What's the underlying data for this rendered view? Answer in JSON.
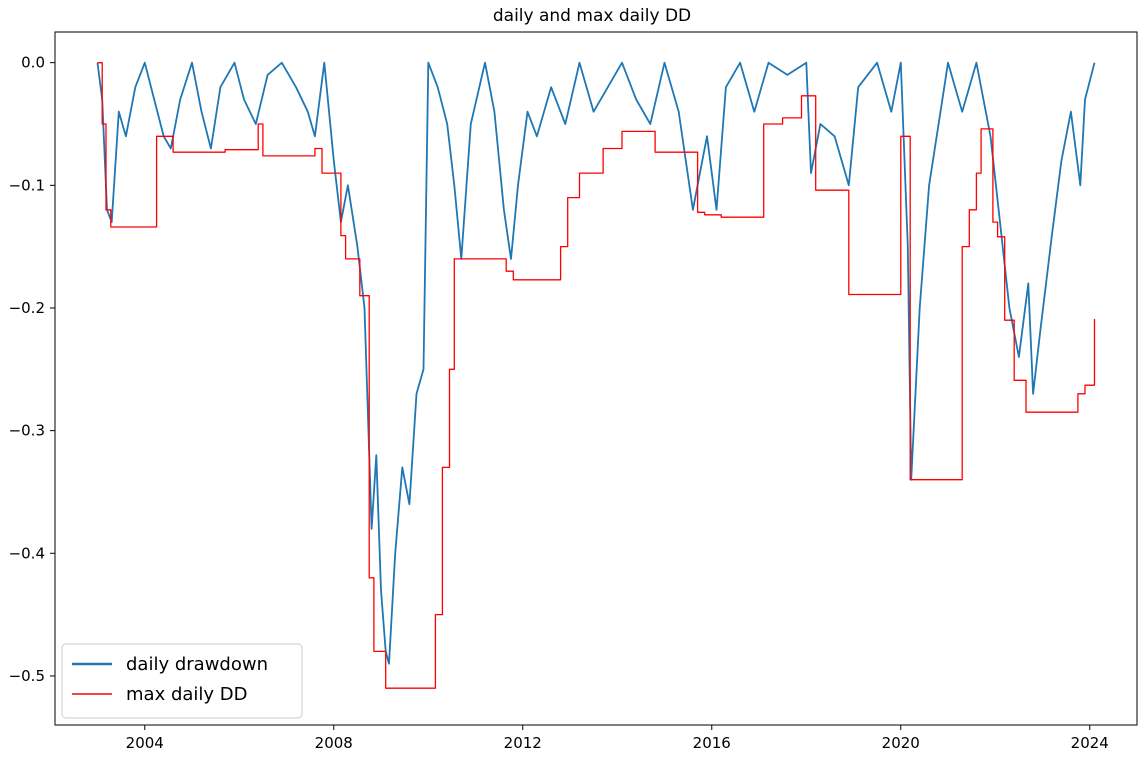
{
  "chart_data": {
    "type": "line",
    "title": "daily and max daily DD",
    "xlabel": "",
    "ylabel": "",
    "xlim": [
      2002.1,
      2025.0
    ],
    "ylim": [
      -0.54,
      0.025
    ],
    "x_ticks": [
      {
        "value": 2004,
        "label": "2004"
      },
      {
        "value": 2008,
        "label": "2008"
      },
      {
        "value": 2012,
        "label": "2012"
      },
      {
        "value": 2016,
        "label": "2016"
      },
      {
        "value": 2020,
        "label": "2020"
      },
      {
        "value": 2024,
        "label": "2024"
      }
    ],
    "y_ticks": [
      {
        "value": 0.0,
        "label": "0.0"
      },
      {
        "value": -0.1,
        "label": "−0.1"
      },
      {
        "value": -0.2,
        "label": "−0.2"
      },
      {
        "value": -0.3,
        "label": "−0.3"
      },
      {
        "value": -0.4,
        "label": "−0.4"
      },
      {
        "value": -0.5,
        "label": "−0.5"
      }
    ],
    "grid": false,
    "legend_position": "lower-left",
    "series": [
      {
        "name": "daily drawdown",
        "color": "#1f77b4",
        "style": "line",
        "points": [
          [
            2003.0,
            0.0
          ],
          [
            2003.1,
            -0.03
          ],
          [
            2003.2,
            -0.12
          ],
          [
            2003.3,
            -0.13
          ],
          [
            2003.45,
            -0.04
          ],
          [
            2003.6,
            -0.06
          ],
          [
            2003.8,
            -0.02
          ],
          [
            2004.0,
            0.0
          ],
          [
            2004.2,
            -0.03
          ],
          [
            2004.4,
            -0.06
          ],
          [
            2004.55,
            -0.07
          ],
          [
            2004.75,
            -0.03
          ],
          [
            2005.0,
            0.0
          ],
          [
            2005.2,
            -0.04
          ],
          [
            2005.4,
            -0.07
          ],
          [
            2005.6,
            -0.02
          ],
          [
            2005.9,
            0.0
          ],
          [
            2006.1,
            -0.03
          ],
          [
            2006.35,
            -0.05
          ],
          [
            2006.6,
            -0.01
          ],
          [
            2006.9,
            0.0
          ],
          [
            2007.2,
            -0.02
          ],
          [
            2007.45,
            -0.04
          ],
          [
            2007.6,
            -0.06
          ],
          [
            2007.8,
            0.0
          ],
          [
            2008.0,
            -0.08
          ],
          [
            2008.15,
            -0.13
          ],
          [
            2008.3,
            -0.1
          ],
          [
            2008.5,
            -0.15
          ],
          [
            2008.65,
            -0.2
          ],
          [
            2008.8,
            -0.38
          ],
          [
            2008.9,
            -0.32
          ],
          [
            2009.0,
            -0.43
          ],
          [
            2009.1,
            -0.48
          ],
          [
            2009.17,
            -0.49
          ],
          [
            2009.3,
            -0.4
          ],
          [
            2009.45,
            -0.33
          ],
          [
            2009.6,
            -0.36
          ],
          [
            2009.75,
            -0.27
          ],
          [
            2009.9,
            -0.25
          ],
          [
            2010.0,
            0.0
          ],
          [
            2010.2,
            -0.02
          ],
          [
            2010.4,
            -0.05
          ],
          [
            2010.55,
            -0.1
          ],
          [
            2010.7,
            -0.16
          ],
          [
            2010.9,
            -0.05
          ],
          [
            2011.2,
            0.0
          ],
          [
            2011.4,
            -0.04
          ],
          [
            2011.6,
            -0.12
          ],
          [
            2011.75,
            -0.16
          ],
          [
            2011.9,
            -0.1
          ],
          [
            2012.1,
            -0.04
          ],
          [
            2012.3,
            -0.06
          ],
          [
            2012.6,
            -0.02
          ],
          [
            2012.9,
            -0.05
          ],
          [
            2013.2,
            0.0
          ],
          [
            2013.5,
            -0.04
          ],
          [
            2013.8,
            -0.02
          ],
          [
            2014.1,
            0.0
          ],
          [
            2014.4,
            -0.03
          ],
          [
            2014.7,
            -0.05
          ],
          [
            2015.0,
            0.0
          ],
          [
            2015.3,
            -0.04
          ],
          [
            2015.6,
            -0.12
          ],
          [
            2015.75,
            -0.09
          ],
          [
            2015.9,
            -0.06
          ],
          [
            2016.1,
            -0.12
          ],
          [
            2016.3,
            -0.02
          ],
          [
            2016.6,
            0.0
          ],
          [
            2016.9,
            -0.04
          ],
          [
            2017.2,
            0.0
          ],
          [
            2017.6,
            -0.01
          ],
          [
            2018.0,
            0.0
          ],
          [
            2018.1,
            -0.09
          ],
          [
            2018.3,
            -0.05
          ],
          [
            2018.6,
            -0.06
          ],
          [
            2018.9,
            -0.1
          ],
          [
            2019.1,
            -0.02
          ],
          [
            2019.5,
            0.0
          ],
          [
            2019.8,
            -0.04
          ],
          [
            2020.0,
            0.0
          ],
          [
            2020.15,
            -0.15
          ],
          [
            2020.22,
            -0.34
          ],
          [
            2020.4,
            -0.2
          ],
          [
            2020.6,
            -0.1
          ],
          [
            2020.8,
            -0.05
          ],
          [
            2021.0,
            0.0
          ],
          [
            2021.3,
            -0.04
          ],
          [
            2021.6,
            0.0
          ],
          [
            2021.9,
            -0.06
          ],
          [
            2022.1,
            -0.13
          ],
          [
            2022.3,
            -0.2
          ],
          [
            2022.5,
            -0.24
          ],
          [
            2022.7,
            -0.18
          ],
          [
            2022.8,
            -0.27
          ],
          [
            2022.95,
            -0.22
          ],
          [
            2023.2,
            -0.14
          ],
          [
            2023.4,
            -0.08
          ],
          [
            2023.6,
            -0.04
          ],
          [
            2023.8,
            -0.1
          ],
          [
            2023.9,
            -0.03
          ],
          [
            2024.1,
            0.0
          ]
        ]
      },
      {
        "name": "max daily DD",
        "color": "#ff0000",
        "style": "step",
        "points": [
          [
            2003.0,
            0.0
          ],
          [
            2003.1,
            -0.05
          ],
          [
            2003.18,
            -0.12
          ],
          [
            2003.28,
            -0.134
          ],
          [
            2004.2,
            -0.134
          ],
          [
            2004.25,
            -0.06
          ],
          [
            2004.6,
            -0.073
          ],
          [
            2005.7,
            -0.071
          ],
          [
            2006.4,
            -0.05
          ],
          [
            2006.5,
            -0.076
          ],
          [
            2007.6,
            -0.07
          ],
          [
            2007.75,
            -0.09
          ],
          [
            2008.15,
            -0.141
          ],
          [
            2008.25,
            -0.16
          ],
          [
            2008.55,
            -0.19
          ],
          [
            2008.75,
            -0.42
          ],
          [
            2008.85,
            -0.48
          ],
          [
            2009.1,
            -0.51
          ],
          [
            2010.1,
            -0.51
          ],
          [
            2010.15,
            -0.45
          ],
          [
            2010.3,
            -0.33
          ],
          [
            2010.45,
            -0.25
          ],
          [
            2010.55,
            -0.16
          ],
          [
            2011.4,
            -0.16
          ],
          [
            2011.65,
            -0.17
          ],
          [
            2011.8,
            -0.177
          ],
          [
            2012.8,
            -0.15
          ],
          [
            2012.95,
            -0.11
          ],
          [
            2013.2,
            -0.09
          ],
          [
            2013.7,
            -0.07
          ],
          [
            2014.1,
            -0.056
          ],
          [
            2014.8,
            -0.073
          ],
          [
            2015.7,
            -0.122
          ],
          [
            2015.85,
            -0.124
          ],
          [
            2016.2,
            -0.126
          ],
          [
            2017.1,
            -0.05
          ],
          [
            2017.5,
            -0.045
          ],
          [
            2017.9,
            -0.027
          ],
          [
            2018.2,
            -0.104
          ],
          [
            2018.9,
            -0.189
          ],
          [
            2019.9,
            -0.189
          ],
          [
            2020.0,
            -0.06
          ],
          [
            2020.2,
            -0.34
          ],
          [
            2021.2,
            -0.34
          ],
          [
            2021.3,
            -0.15
          ],
          [
            2021.45,
            -0.12
          ],
          [
            2021.6,
            -0.09
          ],
          [
            2021.7,
            -0.054
          ],
          [
            2021.95,
            -0.13
          ],
          [
            2022.05,
            -0.142
          ],
          [
            2022.2,
            -0.21
          ],
          [
            2022.4,
            -0.259
          ],
          [
            2022.65,
            -0.285
          ],
          [
            2023.6,
            -0.285
          ],
          [
            2023.75,
            -0.27
          ],
          [
            2023.9,
            -0.263
          ],
          [
            2024.1,
            -0.209
          ]
        ]
      }
    ]
  }
}
